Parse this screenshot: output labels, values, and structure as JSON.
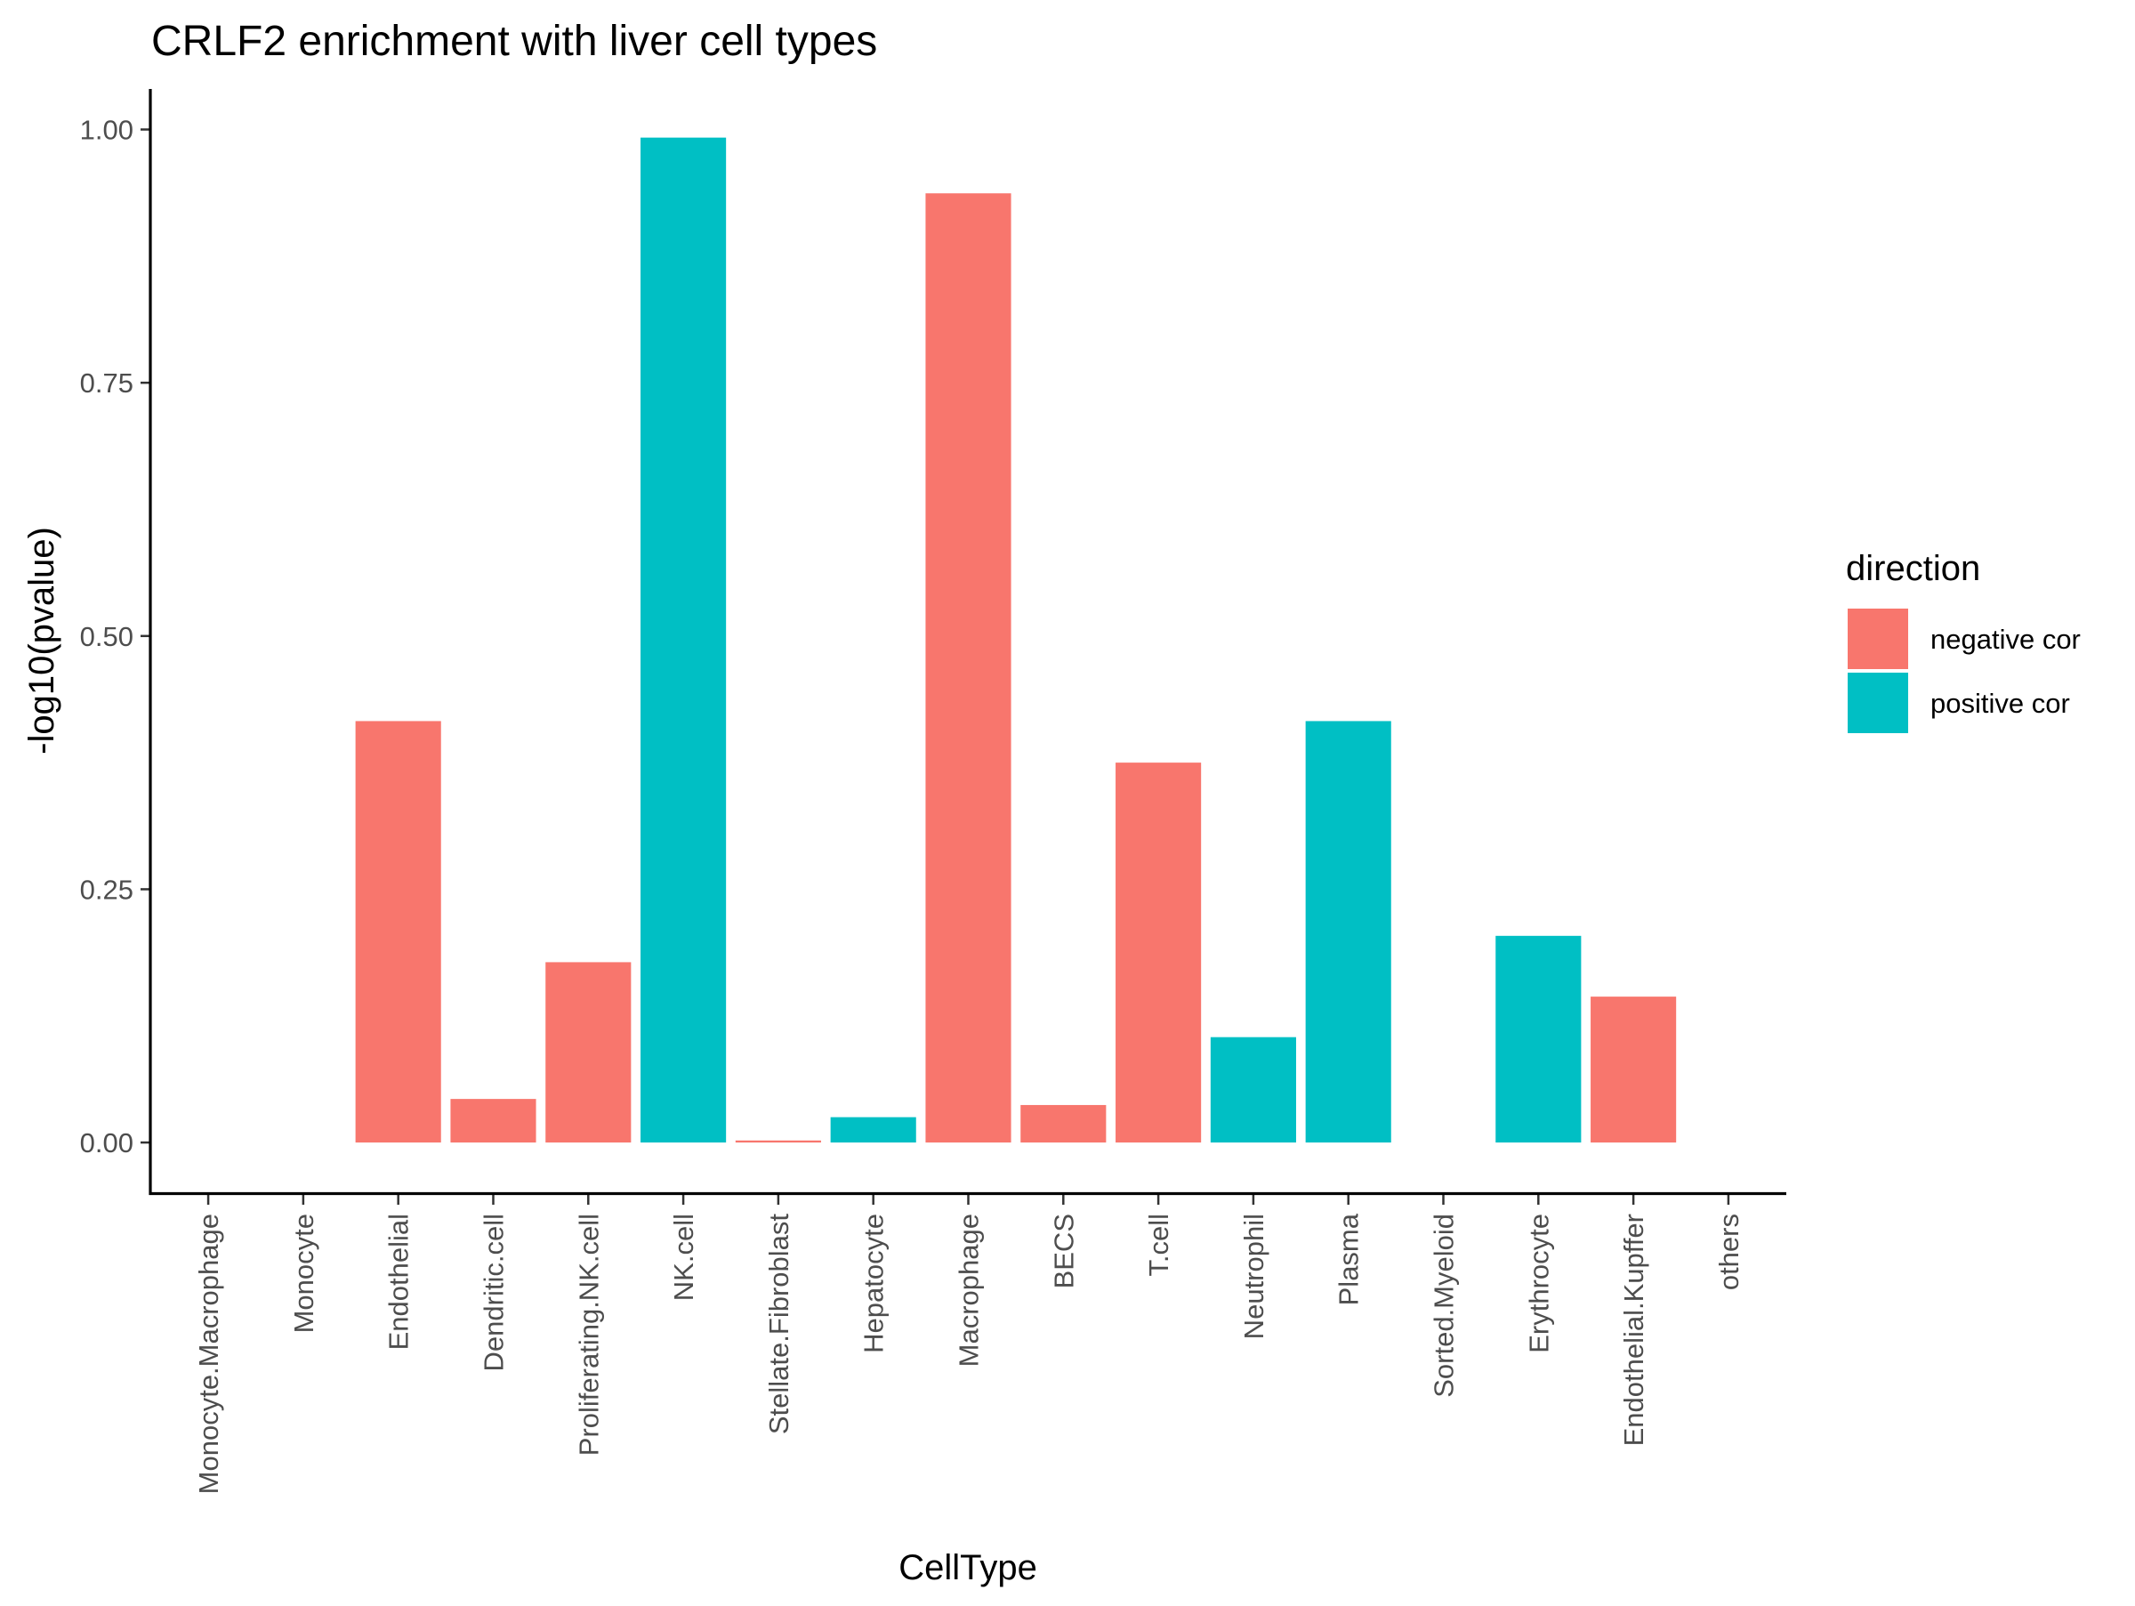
{
  "chart_data": {
    "type": "bar",
    "title": "CRLF2 enrichment with liver cell types",
    "xlabel": "CellType",
    "ylabel": "-log10(pvalue)",
    "ylim": [
      -0.05,
      1.04
    ],
    "yticks": [
      0.0,
      0.25,
      0.5,
      0.75,
      1.0
    ],
    "ytick_labels": [
      "0.00",
      "0.25",
      "0.50",
      "0.75",
      "1.00"
    ],
    "grid": false,
    "legend": {
      "title": "direction",
      "placement": "right",
      "entries": [
        {
          "label": "negative cor",
          "color": "#F8766D"
        },
        {
          "label": "positive cor",
          "color": "#00BFC4"
        }
      ]
    },
    "categories": [
      "Monocyte.Macrophage",
      "Monocyte",
      "Endothelial",
      "Dendritic.cell",
      "Proliferating.NK.cell",
      "NK.cell",
      "Stellate.Fibroblast",
      "Hepatocyte",
      "Macrophage",
      "BECS",
      "T.cell",
      "Neutrophil",
      "Plasma",
      "Sorted.Myeloid",
      "Erythrocyte",
      "Endothelial.Kupffer",
      "others"
    ],
    "values": [
      0,
      0,
      0.416,
      0.043,
      0.178,
      0.992,
      0.002,
      0.025,
      0.937,
      0.037,
      0.375,
      0.104,
      0.416,
      0,
      0.204,
      0.144,
      0
    ],
    "direction": [
      null,
      null,
      "negative cor",
      "negative cor",
      "negative cor",
      "positive cor",
      "negative cor",
      "positive cor",
      "negative cor",
      "negative cor",
      "negative cor",
      "positive cor",
      "positive cor",
      null,
      "positive cor",
      "negative cor",
      null
    ]
  }
}
